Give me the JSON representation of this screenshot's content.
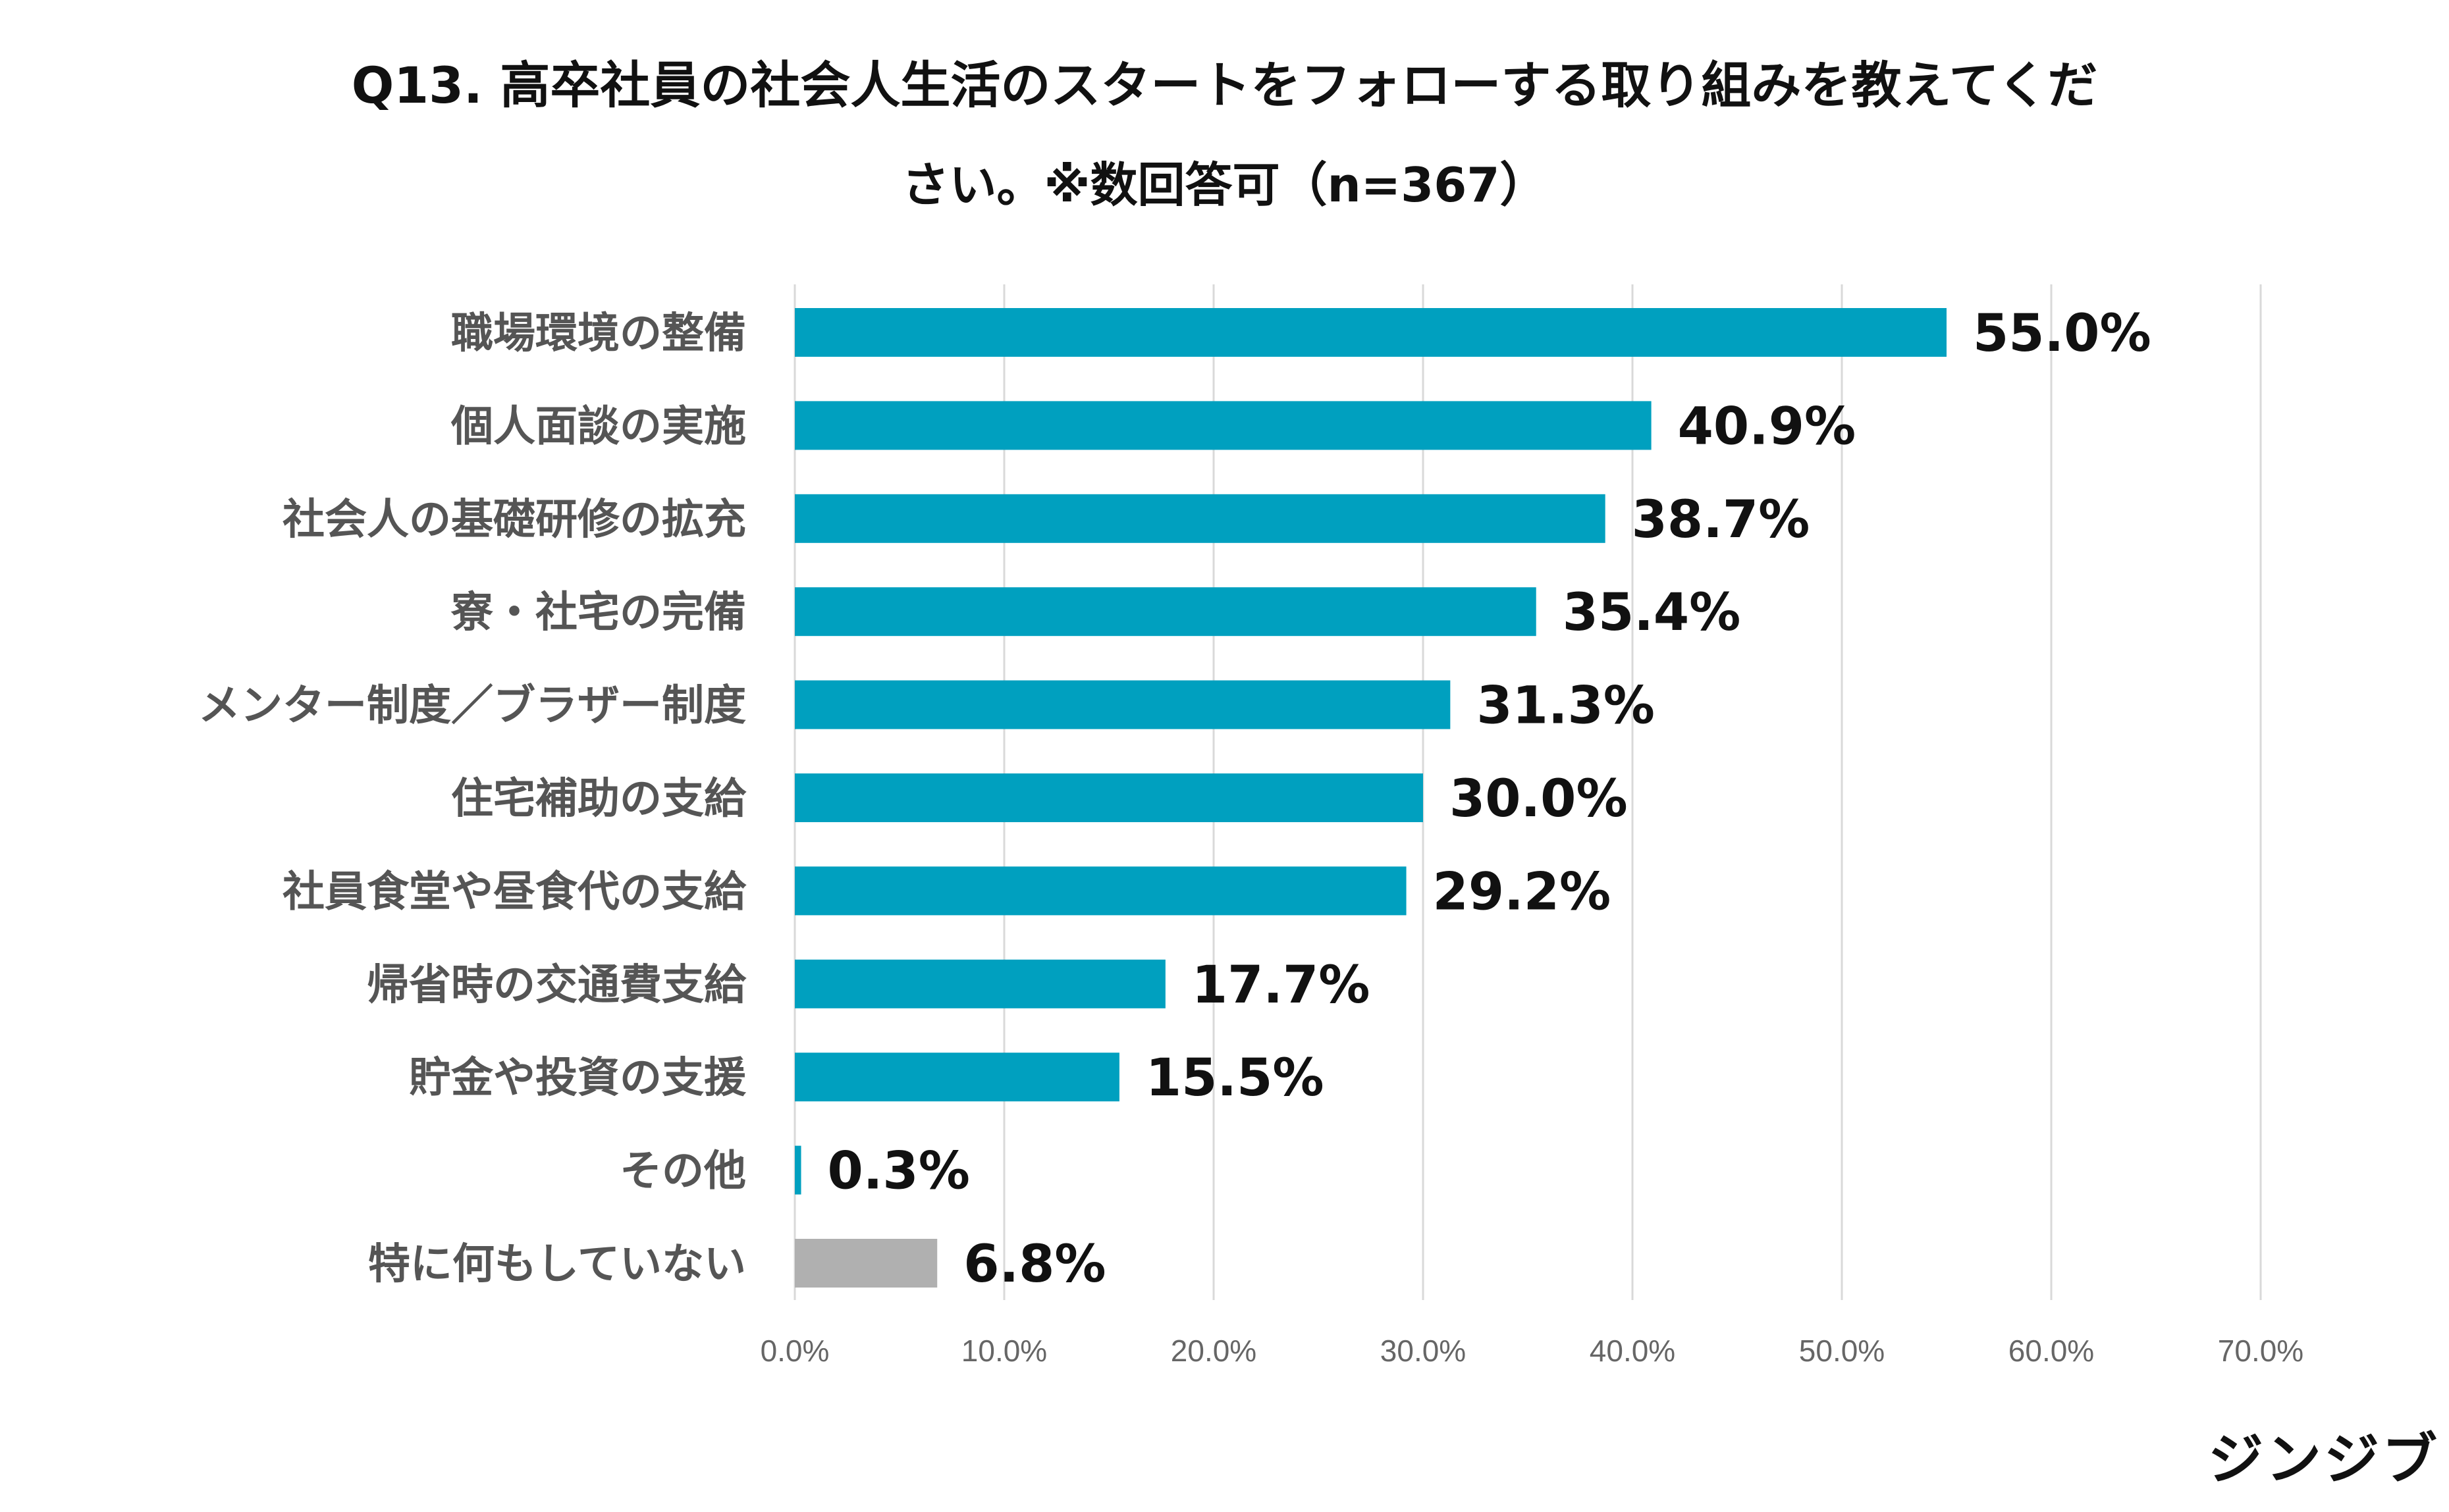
{
  "title": {
    "line1": "Q13. 高卒社員の社会人生活のスタートをフォローする取り組みを教えてくだ",
    "line2": "さい。※数回答可（n=367）"
  },
  "logo": "ジンジブ",
  "chart_data": {
    "type": "bar",
    "orientation": "horizontal",
    "categories": [
      "職場環境の整備",
      "個人面談の実施",
      "社会人の基礎研修の拡充",
      "寮・社宅の完備",
      "メンター制度／ブラザー制度",
      "住宅補助の支給",
      "社員食堂や昼食代の支給",
      "帰省時の交通費支給",
      "貯金や投資の支援",
      "その他",
      "特に何もしていない"
    ],
    "values": [
      55.0,
      40.9,
      38.7,
      35.4,
      31.3,
      30.0,
      29.2,
      17.7,
      15.5,
      0.3,
      6.8
    ],
    "value_labels": [
      "55.0%",
      "40.9%",
      "38.7%",
      "35.4%",
      "31.3%",
      "30.0%",
      "29.2%",
      "17.7%",
      "15.5%",
      "0.3%",
      "6.8%"
    ],
    "xlim": [
      0,
      70
    ],
    "xticks": [
      0,
      10,
      20,
      30,
      40,
      50,
      60,
      70
    ],
    "xtick_labels": [
      "0.0%",
      "10.0%",
      "20.0%",
      "30.0%",
      "40.0%",
      "50.0%",
      "60.0%",
      "70.0%"
    ],
    "colors": {
      "bar": "#00A0BF",
      "highlight_bar": "#B0B0B0",
      "grid": "#D9D9D9"
    },
    "highlight_category": "特に何もしていない",
    "grid": true
  }
}
